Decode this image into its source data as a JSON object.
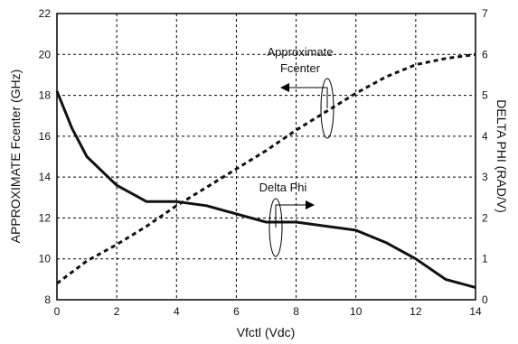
{
  "chart_data": {
    "type": "line",
    "xlabel": "Vfctl (Vdc)",
    "ylabel_left": "APPROXIMATE Fcenter (GHz)",
    "ylabel_right": "DELTA PHI (RAD/V)",
    "xlim": [
      0,
      14
    ],
    "ylim_left": [
      8,
      22
    ],
    "ylim_right": [
      0,
      7
    ],
    "x_ticks": [
      "0",
      "2",
      "4",
      "6",
      "8",
      "10",
      "12",
      "14"
    ],
    "y_ticks_left": [
      "8",
      "10",
      "12",
      "14",
      "16",
      "18",
      "20",
      "22"
    ],
    "y_ticks_right": [
      "0",
      "1",
      "2",
      "3",
      "4",
      "5",
      "6",
      "7"
    ],
    "grid": true,
    "series": [
      {
        "name": "Approximate Fcenter",
        "axis": "left",
        "style": "dashed",
        "x": [
          0,
          1,
          2,
          3,
          4,
          5,
          6,
          7,
          8,
          9,
          10,
          11,
          12,
          13,
          14
        ],
        "y": [
          8.8,
          9.9,
          10.7,
          11.6,
          12.6,
          13.5,
          14.4,
          15.3,
          16.3,
          17.2,
          18.1,
          18.9,
          19.5,
          19.8,
          20.0
        ]
      },
      {
        "name": "Delta Phi",
        "axis": "right",
        "style": "solid",
        "x": [
          0,
          0.5,
          1,
          2,
          3,
          4,
          5,
          6,
          7,
          8,
          9,
          10,
          11,
          12,
          13,
          14
        ],
        "y": [
          5.1,
          4.2,
          3.5,
          2.8,
          2.4,
          2.4,
          2.3,
          2.1,
          1.9,
          1.9,
          1.8,
          1.7,
          1.4,
          1.0,
          0.5,
          0.3
        ]
      }
    ],
    "annotations": [
      {
        "id": "fcenter",
        "lines": [
          "Approximate",
          "Fcenter"
        ]
      },
      {
        "id": "deltaphi",
        "lines": [
          "Delta Phi"
        ]
      }
    ]
  }
}
